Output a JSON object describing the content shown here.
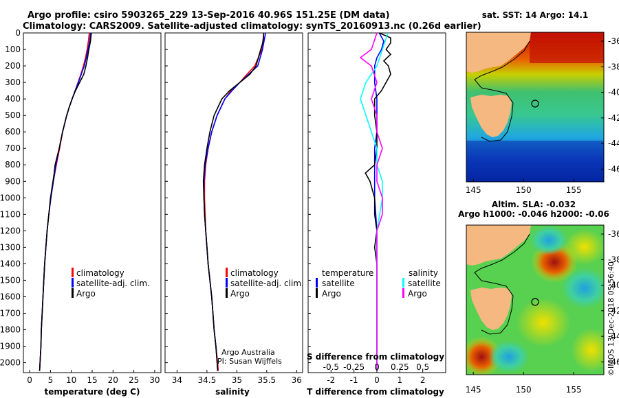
{
  "title": {
    "line1": "Argo profile: csiro 5903265_229 13-Sep-2016 40.96S 151.25E (DM data)",
    "line2": "Climatology: CARS2009. Satellite-adjusted climatology: synTS_20160913.nc (0.26d earlier)"
  },
  "colors": {
    "climatology": "#ff0000",
    "satellite": "#0000ff",
    "argo": "#000000",
    "sat_s": "#00ffff",
    "argo_s": "#ff00ff"
  },
  "depth_ticks": [
    "0",
    "100",
    "200",
    "300",
    "400",
    "500",
    "600",
    "700",
    "800",
    "900",
    "1000",
    "1100",
    "1200",
    "1300",
    "1400",
    "1500",
    "1600",
    "1700",
    "1800",
    "1900",
    "2000"
  ],
  "chart_data": [
    {
      "type": "line",
      "id": "temperature",
      "xlabel": "temperature (deg C)",
      "ylabel": "depth",
      "xlim": [
        -1.5,
        31.5
      ],
      "ylim": [
        2060,
        0
      ],
      "xticks": [
        "0",
        "5",
        "10",
        "15",
        "20",
        "25",
        "30"
      ],
      "legend": [
        "climatology",
        "satellite-adj. clim.",
        "Argo"
      ],
      "series": [
        {
          "name": "climatology",
          "color": "#ff0000",
          "depth": [
            0,
            50,
            100,
            150,
            200,
            250,
            300,
            350,
            400,
            450,
            500,
            600,
            700,
            800,
            900,
            1000,
            1100,
            1200,
            1300,
            1400,
            1500,
            1600,
            1700,
            1800,
            1900,
            2000,
            2050
          ],
          "values": [
            14.3,
            14.1,
            13.8,
            13.4,
            12.9,
            12.3,
            11.6,
            10.9,
            10.2,
            9.5,
            8.9,
            7.9,
            7.2,
            6.4,
            5.7,
            5.1,
            4.6,
            4.2,
            3.9,
            3.6,
            3.4,
            3.2,
            3.0,
            2.8,
            2.7,
            2.5,
            2.4
          ]
        },
        {
          "name": "satellite-adj. clim.",
          "color": "#0000ff",
          "depth": [
            0,
            50,
            100,
            150,
            200,
            250,
            300,
            350,
            400,
            450,
            500,
            600,
            700,
            800,
            900,
            1000,
            1100,
            1200,
            1300,
            1400,
            1500,
            1600,
            1700,
            1800,
            1900,
            2000,
            2050
          ],
          "values": [
            14.6,
            14.4,
            14.0,
            13.6,
            13.1,
            12.4,
            11.7,
            10.9,
            10.2,
            9.5,
            8.9,
            7.9,
            7.1,
            6.3,
            5.7,
            5.1,
            4.6,
            4.2,
            3.9,
            3.6,
            3.4,
            3.2,
            3.0,
            2.8,
            2.7,
            2.5,
            2.4
          ]
        },
        {
          "name": "Argo",
          "color": "#000000",
          "depth": [
            0,
            50,
            100,
            150,
            200,
            250,
            300,
            350,
            400,
            450,
            500,
            600,
            700,
            800,
            850,
            900,
            1000,
            1100,
            1200,
            1300,
            1400,
            1500,
            1600,
            1700,
            1800,
            1900,
            2000,
            2050
          ],
          "values": [
            14.8,
            14.6,
            14.2,
            13.9,
            13.5,
            13.0,
            12.0,
            11.0,
            10.2,
            9.5,
            8.9,
            7.9,
            7.1,
            6.1,
            5.9,
            5.6,
            5.0,
            4.6,
            4.2,
            3.9,
            3.6,
            3.4,
            3.2,
            3.0,
            2.8,
            2.7,
            2.5,
            2.4
          ]
        }
      ]
    },
    {
      "type": "line",
      "id": "salinity",
      "xlabel": "salinity",
      "xlim": [
        33.8,
        36.1
      ],
      "ylim": [
        2060,
        0
      ],
      "xticks": [
        "34",
        "34.5",
        "35",
        "35.5",
        "36"
      ],
      "legend": [
        "climatology",
        "satellite-adj. clim.",
        "Argo"
      ],
      "credit": [
        "Argo Australia",
        "PI: Susan Wijffels"
      ],
      "series": [
        {
          "name": "climatology",
          "color": "#ff0000",
          "depth": [
            0,
            100,
            200,
            250,
            300,
            350,
            400,
            500,
            600,
            700,
            800,
            900,
            1000,
            1100,
            1200,
            1300,
            1400,
            1500,
            1600,
            1700,
            1800,
            1900,
            2000,
            2050
          ],
          "values": [
            35.45,
            35.42,
            35.3,
            35.17,
            35.05,
            34.9,
            34.8,
            34.67,
            34.58,
            34.52,
            34.48,
            34.46,
            34.46,
            34.47,
            34.48,
            34.5,
            34.52,
            34.55,
            34.58,
            34.6,
            34.62,
            34.65,
            34.68,
            34.69
          ]
        },
        {
          "name": "satellite-adj. clim.",
          "color": "#0000ff",
          "depth": [
            0,
            100,
            200,
            250,
            300,
            350,
            400,
            500,
            600,
            700,
            800,
            900,
            1000,
            1100,
            1200,
            1300,
            1400,
            1500,
            1600,
            1700,
            1800,
            1900,
            2000,
            2050
          ],
          "values": [
            35.48,
            35.43,
            35.35,
            35.2,
            35.05,
            34.92,
            34.8,
            34.67,
            34.58,
            34.52,
            34.47,
            34.45,
            34.45,
            34.46,
            34.48,
            34.5,
            34.52,
            34.55,
            34.58,
            34.6,
            34.62,
            34.65,
            34.67,
            34.68
          ]
        },
        {
          "name": "Argo",
          "color": "#000000",
          "depth": [
            0,
            50,
            100,
            200,
            250,
            300,
            350,
            400,
            500,
            600,
            700,
            800,
            900,
            1000,
            1100,
            1200,
            1300,
            1400,
            1500,
            1600,
            1700,
            1800,
            1900,
            2000,
            2050
          ],
          "values": [
            35.45,
            35.44,
            35.4,
            35.32,
            35.22,
            35.05,
            34.88,
            34.75,
            34.62,
            34.55,
            34.5,
            34.46,
            34.44,
            34.45,
            34.46,
            34.48,
            34.5,
            34.52,
            34.55,
            34.58,
            34.6,
            34.62,
            34.65,
            34.67,
            34.68
          ]
        }
      ]
    },
    {
      "type": "line",
      "id": "difference",
      "xlabel": "T difference from climatology",
      "xlabel2": "S difference from climatology",
      "xlim": [
        -3,
        3
      ],
      "ylim": [
        2060,
        0
      ],
      "xticks": [
        "-2",
        "-1",
        "0",
        "1",
        "2"
      ],
      "xticks2": [
        "-0.5",
        "-0.25",
        "0",
        "0.25",
        "0.5"
      ],
      "legend_left": [
        "temperature",
        "satellite",
        "Argo"
      ],
      "legend_right": [
        "salinity",
        "satellite",
        "Argo"
      ],
      "series": [
        {
          "name": "temperature satellite",
          "color": "#0000ff",
          "depth": [
            0,
            50,
            100,
            150,
            200,
            250,
            300,
            400,
            500,
            600,
            700,
            800,
            900,
            1000,
            1200,
            1400,
            1600,
            1800,
            2000,
            2050
          ],
          "values": [
            0.1,
            0.3,
            0.2,
            0.0,
            -0.1,
            -0.1,
            -0.1,
            0.0,
            0.0,
            0.0,
            -0.1,
            -0.1,
            -0.1,
            -0.1,
            0.0,
            0.0,
            0.0,
            0.0,
            0.0,
            0.0
          ]
        },
        {
          "name": "temperature Argo",
          "color": "#000000",
          "depth": [
            0,
            30,
            60,
            100,
            130,
            170,
            200,
            250,
            300,
            350,
            400,
            500,
            600,
            700,
            800,
            850,
            900,
            950,
            1000,
            1100,
            1200,
            1300,
            1400,
            1500,
            1600,
            1800,
            2000,
            2050
          ],
          "values": [
            0.1,
            0.6,
            0.6,
            0.4,
            0.6,
            0.3,
            0.5,
            0.6,
            0.4,
            0.2,
            -0.1,
            -0.1,
            0.0,
            0.0,
            -0.1,
            -0.5,
            -0.3,
            -0.2,
            -0.1,
            -0.1,
            0.0,
            -0.1,
            0.0,
            0.0,
            0.0,
            0.0,
            0.0,
            0.0
          ]
        },
        {
          "name": "salinity satellite",
          "color": "#00ffff",
          "depth": [
            0,
            100,
            200,
            300,
            400,
            500,
            600,
            700,
            800,
            900,
            1000,
            1200,
            1400,
            1600,
            1800,
            2000,
            2050
          ],
          "values": [
            0.12,
            0.06,
            0.0,
            -0.12,
            -0.18,
            -0.12,
            -0.06,
            0.0,
            0.0,
            0.06,
            0.06,
            0.0,
            0.0,
            0.0,
            0.0,
            0.0,
            0.0
          ]
        },
        {
          "name": "salinity Argo",
          "color": "#ff00ff",
          "depth": [
            0,
            100,
            150,
            200,
            300,
            400,
            500,
            600,
            700,
            800,
            900,
            1000,
            1100,
            1200,
            1400,
            1600,
            1800,
            2000,
            2050
          ],
          "values": [
            0.0,
            -0.06,
            -0.18,
            -0.06,
            0.0,
            -0.06,
            0.0,
            0.0,
            0.06,
            0.0,
            0.0,
            0.06,
            0.06,
            0.0,
            0.0,
            0.0,
            0.0,
            0.0,
            0.0
          ]
        }
      ]
    }
  ],
  "maps": {
    "sst_title": "sat. SST: 14 Argo: 14.1",
    "sla_title1": "Altim. SLA: -0.032",
    "sla_title2": "Argo h1000: -0.046 h2000: -0.06",
    "lon_ticks": [
      "145",
      "150",
      "155"
    ],
    "lat_ticks": [
      "-36",
      "-38",
      "-40",
      "-42",
      "-44",
      "-46"
    ]
  },
  "footer": "©IMOS 13-Dec-2018 05:56:40"
}
